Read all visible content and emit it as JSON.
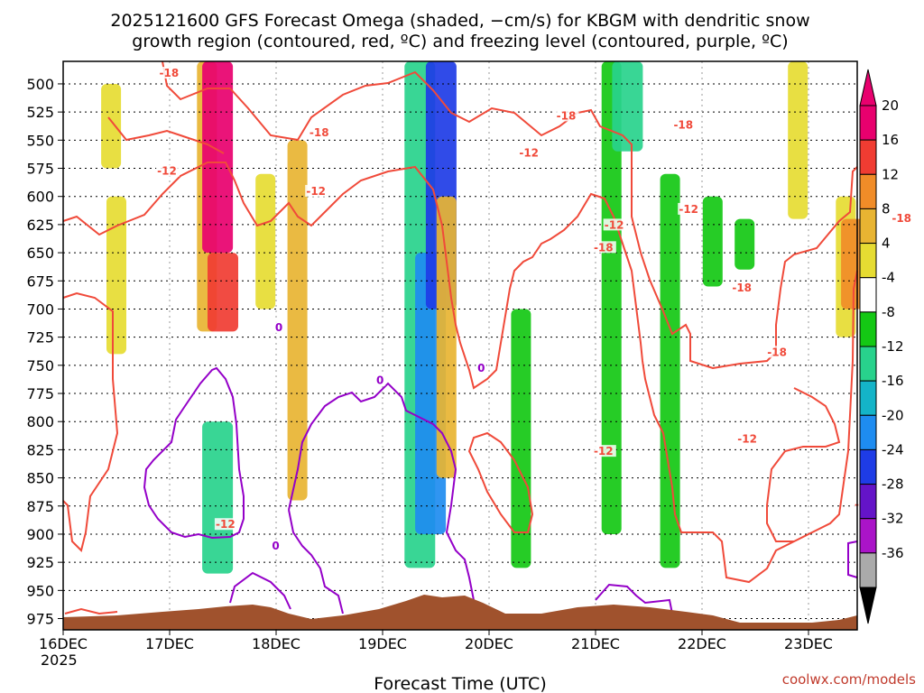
{
  "chart_data": {
    "type": "heatmap",
    "title_line1": "2025121600 GFS Forecast Omega (shaded, −cm/s) for KBGM with dendritic snow",
    "title_line2": "growth region (contoured, red, ºC) and freezing level (contoured, purple, ºC)",
    "xlabel": "Forecast Time (UTC)",
    "credit": "coolwx.com/models",
    "x_ticks": [
      "16DEC",
      "17DEC",
      "18DEC",
      "19DEC",
      "20DEC",
      "21DEC",
      "22DEC",
      "23DEC"
    ],
    "x_year": "2025",
    "xlim_days": [
      0,
      7.5
    ],
    "y_ticks": [
      "500",
      "525",
      "550",
      "575",
      "600",
      "625",
      "650",
      "675",
      "700",
      "725",
      "750",
      "775",
      "800",
      "825",
      "850",
      "875",
      "900",
      "925",
      "950",
      "975"
    ],
    "ylim_hpa": [
      480,
      985
    ],
    "colorbar": {
      "labels": [
        "20",
        "16",
        "12",
        "8",
        "4",
        "-4",
        "-8",
        "-12",
        "-16",
        "-20",
        "-24",
        "-28",
        "-32",
        "-36"
      ],
      "colors": [
        "#e8006e",
        "#f03c32",
        "#f08c28",
        "#e8b432",
        "#e6dc32",
        "#ffffff",
        "#14c814",
        "#28d28c",
        "#14b4c8",
        "#1e8cf0",
        "#1e3ce6",
        "#6414c8",
        "#aa14c8",
        "#aaaaaa"
      ],
      "top_arrow_color": "#e8006e",
      "bottom_arrow_color": "#000000"
    },
    "shaded_regions": [
      {
        "day": 0.45,
        "p_top": 500,
        "p_bot": 575,
        "omega": 4
      },
      {
        "day": 0.5,
        "p_top": 600,
        "p_bot": 740,
        "omega": 4
      },
      {
        "day": 1.35,
        "p_top": 480,
        "p_bot": 720,
        "omega": 8
      },
      {
        "day": 1.45,
        "p_top": 480,
        "p_bot": 650,
        "omega": 20
      },
      {
        "day": 1.5,
        "p_top": 650,
        "p_bot": 720,
        "omega": 16
      },
      {
        "day": 1.9,
        "p_top": 580,
        "p_bot": 700,
        "omega": 4
      },
      {
        "day": 2.2,
        "p_top": 550,
        "p_bot": 870,
        "omega": 8
      },
      {
        "day": 1.45,
        "p_top": 800,
        "p_bot": 935,
        "omega": -12
      },
      {
        "day": 3.35,
        "p_top": 480,
        "p_bot": 930,
        "omega": -12
      },
      {
        "day": 3.45,
        "p_top": 650,
        "p_bot": 900,
        "omega": -20
      },
      {
        "day": 3.55,
        "p_top": 480,
        "p_bot": 700,
        "omega": -24
      },
      {
        "day": 3.6,
        "p_top": 600,
        "p_bot": 850,
        "omega": 8
      },
      {
        "day": 4.3,
        "p_top": 700,
        "p_bot": 930,
        "omega": -8
      },
      {
        "day": 5.15,
        "p_top": 480,
        "p_bot": 900,
        "omega": -8
      },
      {
        "day": 5.3,
        "p_top": 480,
        "p_bot": 560,
        "omega": -12
      },
      {
        "day": 5.7,
        "p_top": 580,
        "p_bot": 930,
        "omega": -8
      },
      {
        "day": 6.1,
        "p_top": 600,
        "p_bot": 680,
        "omega": -8
      },
      {
        "day": 6.4,
        "p_top": 620,
        "p_bot": 665,
        "omega": -8
      },
      {
        "day": 6.9,
        "p_top": 480,
        "p_bot": 620,
        "omega": 4
      },
      {
        "day": 7.35,
        "p_top": 600,
        "p_bot": 725,
        "omega": 4
      },
      {
        "day": 7.45,
        "p_top": 620,
        "p_bot": 700,
        "omega": 12
      }
    ],
    "red_contour_labels": [
      {
        "text": "-18",
        "day": 0.02,
        "p": 492
      },
      {
        "text": "-12",
        "day": 0.0,
        "p": 579
      },
      {
        "text": "-18",
        "day": 1.43,
        "p": 545
      },
      {
        "text": "-12",
        "day": 1.4,
        "p": 597
      },
      {
        "text": "-18",
        "day": 3.75,
        "p": 530
      },
      {
        "text": "-12",
        "day": 3.4,
        "p": 563
      },
      {
        "text": "-12",
        "day": 4.2,
        "p": 627
      },
      {
        "text": "-18",
        "day": 4.1,
        "p": 647
      },
      {
        "text": "-18",
        "day": 4.85,
        "p": 538
      },
      {
        "text": "-12",
        "day": 4.9,
        "p": 613
      },
      {
        "text": "-18",
        "day": 5.4,
        "p": 683
      },
      {
        "text": "-18",
        "day": 5.73,
        "p": 740
      },
      {
        "text": "-12",
        "day": 5.45,
        "p": 817
      },
      {
        "text": "-18",
        "day": 6.9,
        "p": 621
      },
      {
        "text": "-12",
        "day": 6.55,
        "p": 875
      },
      {
        "text": "-12",
        "day": 7.2,
        "p": 755
      },
      {
        "text": "-12",
        "day": 0.55,
        "p": 893
      },
      {
        "text": "-12",
        "day": 4.1,
        "p": 828
      }
    ],
    "purple_contour_labels": [
      {
        "text": "0",
        "day": 1.45,
        "p": 718
      },
      {
        "text": "0",
        "day": 2.4,
        "p": 765
      },
      {
        "text": "0",
        "day": 3.35,
        "p": 754
      },
      {
        "text": "0",
        "day": 1.42,
        "p": 912
      }
    ]
  }
}
